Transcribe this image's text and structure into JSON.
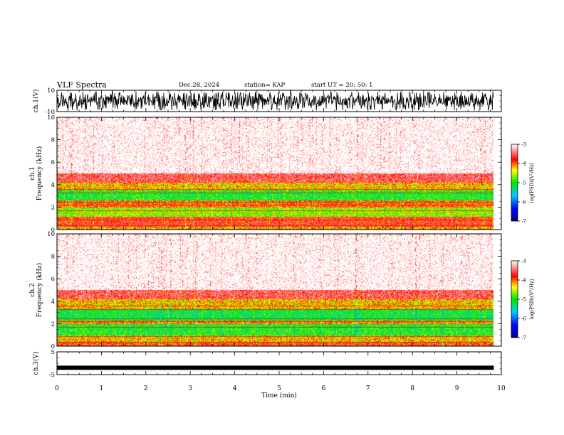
{
  "header": {
    "title": "VLF Spectra",
    "date": "Dec.28, 2024",
    "station": "station= KAP",
    "start": "start  UT  =   20: 50: 1"
  },
  "chart_data": [
    {
      "type": "line",
      "id": "ch1-waveform",
      "ylabel": "ch.1(V)",
      "ylim": [
        -10,
        10
      ],
      "yticks": [
        "10",
        "-10"
      ],
      "xlim": [
        0,
        10
      ],
      "note": "dense noise-like waveform spanning roughly -10 to 10 V from 0 to ~9.8 min"
    },
    {
      "type": "heatmap",
      "id": "ch1-spectrogram",
      "ylabel": "ch.1\nFrequency  (kHz)",
      "ylim": [
        0,
        10
      ],
      "yticks": [
        "0",
        "2",
        "4",
        "6",
        "8",
        "10"
      ],
      "xlim": [
        0,
        10
      ],
      "data_extent_min": 9.83,
      "bands": [
        {
          "from_khz": 0.0,
          "to_khz": 0.3,
          "level": -4.2
        },
        {
          "from_khz": 0.3,
          "to_khz": 1.2,
          "level": -3.8
        },
        {
          "from_khz": 1.2,
          "to_khz": 2.0,
          "level": -4.6
        },
        {
          "from_khz": 2.0,
          "to_khz": 2.6,
          "level": -4.0
        },
        {
          "from_khz": 2.6,
          "to_khz": 3.5,
          "level": -5.0
        },
        {
          "from_khz": 3.5,
          "to_khz": 4.2,
          "level": -4.3
        },
        {
          "from_khz": 4.2,
          "to_khz": 5.0,
          "level": -3.6
        },
        {
          "from_khz": 5.0,
          "to_khz": 10.0,
          "level": -3.1
        }
      ],
      "colorbar": {
        "label": "log(PSD)(V²/Hz)",
        "range": [
          -7,
          -3
        ],
        "ticks": [
          "-3",
          "-4",
          "-5",
          "-6",
          "-7"
        ]
      }
    },
    {
      "type": "heatmap",
      "id": "ch2-spectrogram",
      "ylabel": "ch.2\nFrequency  (kHz)",
      "ylim": [
        0,
        10
      ],
      "yticks": [
        "0",
        "2",
        "4",
        "6",
        "8",
        "10"
      ],
      "xlim": [
        0,
        10
      ],
      "data_extent_min": 9.83,
      "bands": [
        {
          "from_khz": 0.0,
          "to_khz": 0.4,
          "level": -3.9
        },
        {
          "from_khz": 0.4,
          "to_khz": 1.0,
          "level": -4.3
        },
        {
          "from_khz": 1.0,
          "to_khz": 2.0,
          "level": -5.0
        },
        {
          "from_khz": 2.0,
          "to_khz": 2.3,
          "level": -4.1
        },
        {
          "from_khz": 2.3,
          "to_khz": 3.3,
          "level": -5.1
        },
        {
          "from_khz": 3.3,
          "to_khz": 4.2,
          "level": -4.3
        },
        {
          "from_khz": 4.2,
          "to_khz": 5.0,
          "level": -3.6
        },
        {
          "from_khz": 5.0,
          "to_khz": 10.0,
          "level": -3.1
        }
      ],
      "colorbar": {
        "label": "log(PSD)(V²/Hz)",
        "range": [
          -7,
          -3
        ],
        "ticks": [
          "-3",
          "-4",
          "-5",
          "-6",
          "-7"
        ]
      }
    },
    {
      "type": "line",
      "id": "ch3-waveform",
      "ylabel": "ch.3(V)",
      "ylim": [
        -5,
        5
      ],
      "yticks": [
        "5",
        "-5"
      ],
      "xlim": [
        0,
        10
      ],
      "note": "thin band near -2 V",
      "level_v": -2
    }
  ],
  "xaxis": {
    "label": "Time  (min)",
    "ticks": [
      "0",
      "1",
      "2",
      "3",
      "4",
      "5",
      "6",
      "7",
      "8",
      "9",
      "10"
    ]
  }
}
